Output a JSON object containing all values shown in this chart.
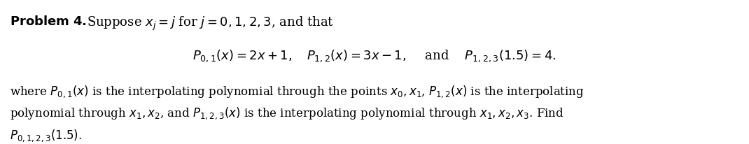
{
  "figsize": [
    10.7,
    2.06
  ],
  "dpi": 100,
  "background_color": "#ffffff",
  "line1_bold": "Problem 4.",
  "line1_normal": " Suppose $x_j = j$ for $j = 0, 1, 2, 3$, and that",
  "line2": "$P_{0,1}(x) = 2x + 1,\\;\\; P_{1,2}(x) = 3x - 1,\\;\\;$ and $\\; P_{1,2,3}(1.5) = 4.$",
  "line3": "where $P_{0,1}(x)$ is the interpolating polynomial through the points $x_0, x_1$, $P_{1,2}(x)$ is the interpolating",
  "line4": "polynomial through $x_1, x_2$, and $P_{1,2,3}(x)$ is the interpolating polynomial through $x_1, x_2, x_3$. Find",
  "line5": "$P_{0,1,2,3}(1.5)$.",
  "text_color": "#000000",
  "font_size_main": 13,
  "font_size_body": 12
}
